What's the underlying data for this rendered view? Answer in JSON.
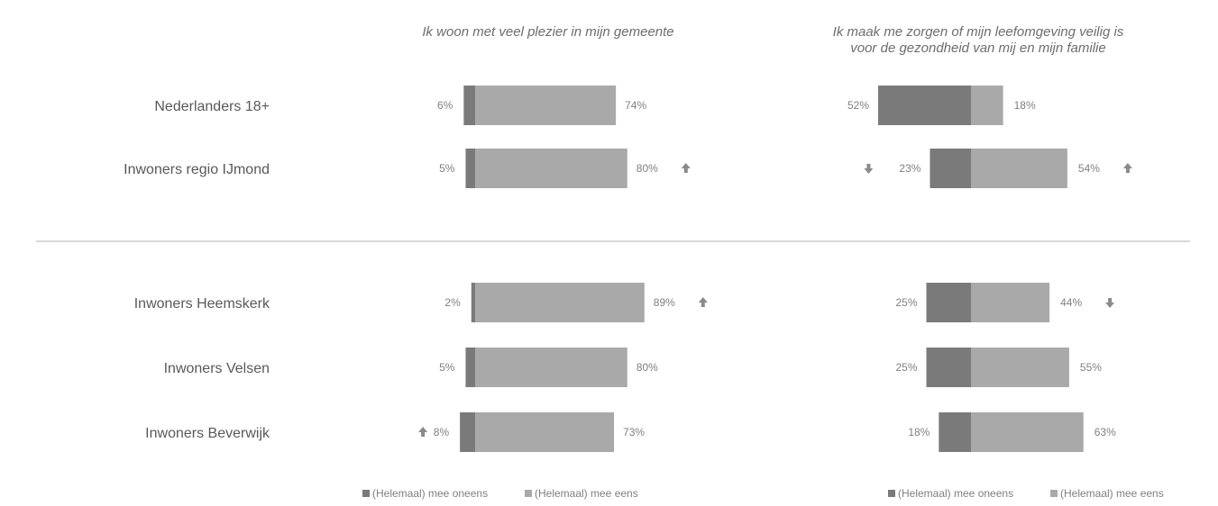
{
  "chart_data": {
    "type": "bar",
    "orientation": "horizontal",
    "stacked": "diverging",
    "categories": [
      "Nederlanders 18+",
      "Inwoners regio IJmond",
      "Inwoners Heemskerk",
      "Inwoners Velsen",
      "Inwoners Beverwijk"
    ],
    "panels": [
      {
        "title_lines": [
          "Ik woon met veel plezier in mijn gemeente"
        ],
        "series": [
          {
            "name": "(Helemaal) mee oneens",
            "color": "#7a7a7a",
            "values": [
              6,
              5,
              2,
              5,
              8
            ],
            "labels": [
              "6%",
              "5%",
              "2%",
              "5%",
              "8%"
            ]
          },
          {
            "name": "(Helemaal) mee eens",
            "color": "#a9a9a9",
            "values": [
              74,
              80,
              89,
              80,
              73
            ],
            "labels": [
              "74%",
              "80%",
              "89%",
              "80%",
              "73%"
            ]
          }
        ],
        "disagree_arrows": [
          null,
          null,
          null,
          null,
          "up"
        ],
        "agree_arrows": [
          null,
          "up",
          "up",
          null,
          null
        ],
        "legend": [
          "(Helemaal) mee oneens",
          "(Helemaal) mee eens"
        ]
      },
      {
        "title_lines": [
          "Ik maak me zorgen of mijn leefomgeving veilig is",
          "voor de gezondheid van mij en mijn familie"
        ],
        "series": [
          {
            "name": "(Helemaal) mee oneens",
            "color": "#7a7a7a",
            "values": [
              52,
              23,
              25,
              25,
              18
            ],
            "labels": [
              "52%",
              "23%",
              "25%",
              "25%",
              "18%"
            ]
          },
          {
            "name": "(Helemaal) mee eens",
            "color": "#a9a9a9",
            "values": [
              18,
              54,
              44,
              55,
              63
            ],
            "labels": [
              "18%",
              "54%",
              "44%",
              "55%",
              "63%"
            ]
          }
        ],
        "disagree_arrows": [
          null,
          "down",
          null,
          null,
          null
        ],
        "agree_arrows": [
          null,
          "up",
          "down",
          null,
          null
        ],
        "legend": [
          "(Helemaal) mee oneens",
          "(Helemaal) mee eens"
        ]
      }
    ],
    "colors": {
      "disagree": "#7a7a7a",
      "agree": "#a9a9a9",
      "separator": "#d9d9d9"
    }
  }
}
